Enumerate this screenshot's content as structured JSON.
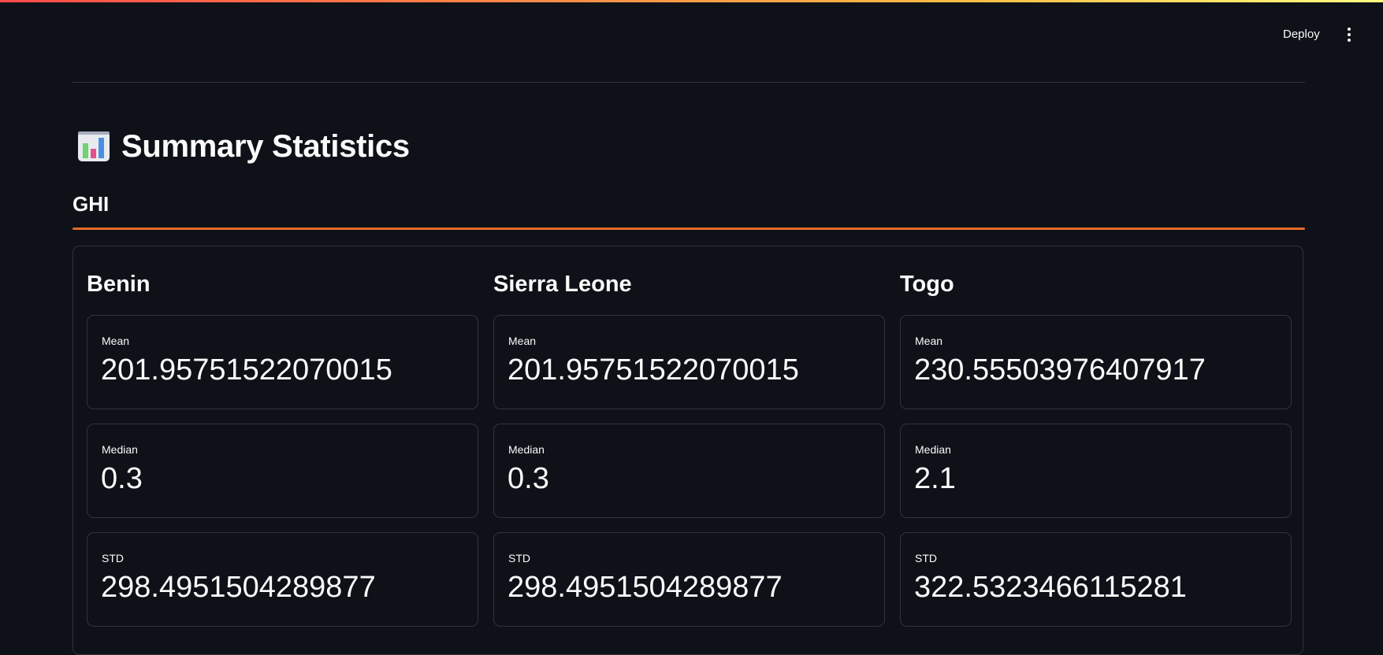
{
  "header": {
    "deploy_label": "Deploy",
    "menu_icon": "vertical-dots-icon"
  },
  "page": {
    "title": "Summary Statistics",
    "title_icon": "bar-chart-icon"
  },
  "section": {
    "label": "GHI",
    "accent_color": "#e36a2a"
  },
  "countries": [
    {
      "name": "Benin",
      "metrics": [
        {
          "label": "Mean",
          "value": "201.95751522070015"
        },
        {
          "label": "Median",
          "value": "0.3"
        },
        {
          "label": "STD",
          "value": "298.4951504289877"
        }
      ]
    },
    {
      "name": "Sierra Leone",
      "metrics": [
        {
          "label": "Mean",
          "value": "201.95751522070015"
        },
        {
          "label": "Median",
          "value": "0.3"
        },
        {
          "label": "STD",
          "value": "298.4951504289877"
        }
      ]
    },
    {
      "name": "Togo",
      "metrics": [
        {
          "label": "Mean",
          "value": "230.55503976407917"
        },
        {
          "label": "Median",
          "value": "2.1"
        },
        {
          "label": "STD",
          "value": "322.5323466115281"
        }
      ]
    }
  ],
  "colors": {
    "background": "#0e1117",
    "border": "#31333f",
    "text": "#fafafa"
  }
}
